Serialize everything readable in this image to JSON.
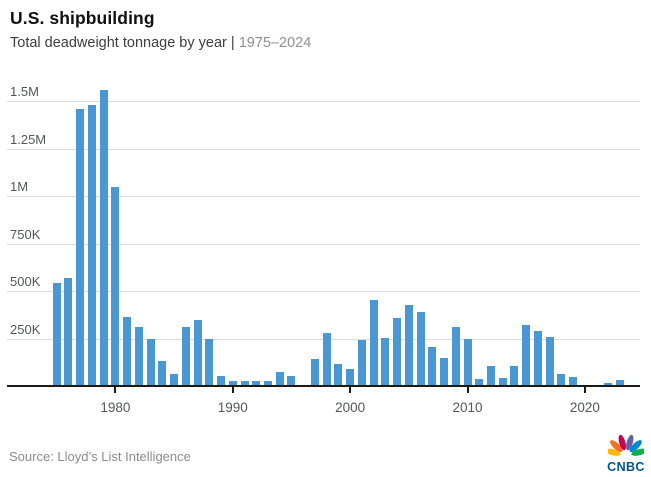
{
  "header": {
    "title": "U.S. shipbuilding",
    "subtitle_main": "Total deadweight tonnage by year | ",
    "subtitle_range": "1975–2024"
  },
  "footer": {
    "source": "Source: Lloyd’s List Intelligence",
    "logo_text": "CNBC"
  },
  "colors": {
    "bar": "#4a98d3",
    "gridline": "#dcdcdc",
    "axis": "#1a1a1a",
    "axis_label": "#54565a",
    "subtitle_gray": "#8f8f8f",
    "cnbc_blue": "#005594",
    "peacock": [
      "#FCB711",
      "#F37021",
      "#CC004C",
      "#6460AA",
      "#0089D0",
      "#0DB14B"
    ]
  },
  "chart_data": {
    "type": "bar",
    "title": "U.S. shipbuilding",
    "subtitle": "Total deadweight tonnage by year | 1975–2024",
    "xlabel": "",
    "ylabel": "Total deadweight tonnage",
    "grid": true,
    "legend": false,
    "bar_color": "#4a98d3",
    "ylim": [
      0,
      1600000
    ],
    "ytick_values": [
      250000,
      500000,
      750000,
      1000000,
      1250000,
      1500000
    ],
    "ytick_labels": [
      "250K",
      "500K",
      "750K",
      "1M",
      "1.25M",
      "1.5M"
    ],
    "xtick_values": [
      1980,
      1990,
      2000,
      2010,
      2020
    ],
    "xtick_labels": [
      "1980",
      "1990",
      "2000",
      "2010",
      "2020"
    ],
    "years": [
      1975,
      1976,
      1977,
      1978,
      1979,
      1980,
      1981,
      1982,
      1983,
      1984,
      1985,
      1986,
      1987,
      1988,
      1989,
      1990,
      1991,
      1992,
      1993,
      1994,
      1995,
      1996,
      1997,
      1998,
      1999,
      2000,
      2001,
      2002,
      2003,
      2004,
      2005,
      2006,
      2007,
      2008,
      2009,
      2010,
      2011,
      2012,
      2013,
      2014,
      2015,
      2016,
      2017,
      2018,
      2019,
      2020,
      2021,
      2022,
      2023,
      2024
    ],
    "values": [
      540000,
      570000,
      1460000,
      1480000,
      1560000,
      1050000,
      365000,
      310000,
      250000,
      130000,
      65000,
      310000,
      350000,
      250000,
      55000,
      25000,
      25000,
      25000,
      25000,
      75000,
      55000,
      0,
      140000,
      280000,
      115000,
      90000,
      240000,
      455000,
      255000,
      360000,
      425000,
      390000,
      205000,
      150000,
      310000,
      245000,
      35000,
      105000,
      40000,
      105000,
      320000,
      290000,
      260000,
      65000,
      45000,
      0,
      0,
      15000,
      30000,
      0
    ],
    "source": "Source: Lloyd’s List Intelligence"
  }
}
